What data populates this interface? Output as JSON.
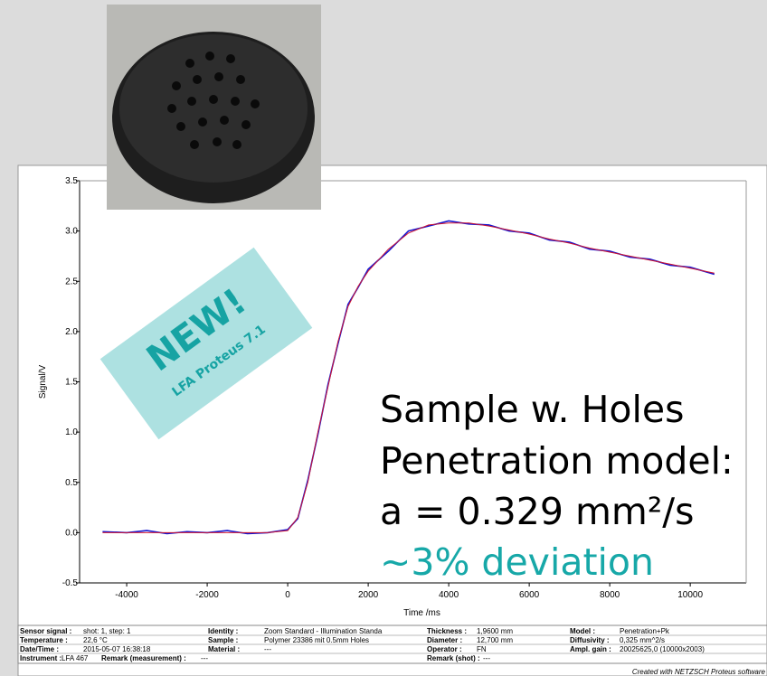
{
  "chart_data": {
    "type": "line",
    "xlabel": "Time /ms",
    "ylabel": "Signal/V",
    "x": [
      -4600,
      -4000,
      -3500,
      -3000,
      -2500,
      -2000,
      -1500,
      -1000,
      -500,
      0,
      250,
      500,
      750,
      1000,
      1250,
      1500,
      1750,
      2000,
      2500,
      3000,
      3500,
      4000,
      4500,
      5000,
      5500,
      6000,
      6500,
      7000,
      7500,
      8000,
      8500,
      9000,
      9500,
      10000,
      10600
    ],
    "series": [
      {
        "color": "#1515d0",
        "values": [
          0.01,
          0.0,
          0.02,
          -0.01,
          0.01,
          0.0,
          0.02,
          -0.01,
          0.0,
          0.03,
          0.14,
          0.52,
          0.98,
          1.47,
          1.88,
          2.27,
          2.44,
          2.62,
          2.8,
          3.0,
          3.05,
          3.1,
          3.07,
          3.06,
          3.0,
          2.98,
          2.91,
          2.89,
          2.82,
          2.8,
          2.74,
          2.72,
          2.66,
          2.64,
          2.57
        ]
      },
      {
        "color": "#d01530",
        "values": [
          0,
          0,
          0,
          0,
          0,
          0,
          0,
          0,
          0,
          0.02,
          0.15,
          0.5,
          1.0,
          1.45,
          1.9,
          2.25,
          2.45,
          2.6,
          2.82,
          2.98,
          3.06,
          3.08,
          3.08,
          3.05,
          3.01,
          2.97,
          2.92,
          2.88,
          2.83,
          2.79,
          2.75,
          2.71,
          2.67,
          2.63,
          2.58
        ]
      }
    ],
    "xlim": [
      -5170,
      11390
    ],
    "ylim": [
      -0.5,
      3.5
    ],
    "xticks": [
      -4000,
      -2000,
      0,
      2000,
      4000,
      6000,
      8000,
      10000
    ],
    "yticks": [
      -0.5,
      {
        "value": 0,
        "label": "0.0"
      },
      0.5,
      {
        "value": 1,
        "label": "1.0"
      },
      1.5,
      {
        "value": 2,
        "label": "2.0"
      },
      2.5,
      {
        "value": 3,
        "label": "3.0"
      },
      3.5
    ],
    "grid": false
  },
  "overlay": {
    "lines": [
      "Sample w. Holes",
      "Penetration model:",
      "a = 0.329 mm²/s",
      "~3% deviation"
    ]
  },
  "badge": {
    "title": "NEW!",
    "subtitle": "LFA Proteus 7.1"
  },
  "footer": {
    "rows": [
      [
        {
          "label": "Sensor signal :",
          "value": "shot: 1, step: 1"
        },
        {
          "label": "Identity :",
          "value": "Zoom Standard - Illumination Standa"
        },
        {
          "label": "Thickness :",
          "value": "1,9600 mm"
        },
        {
          "label": "Model :",
          "value": "Penetration+Pk"
        }
      ],
      [
        {
          "label": "Temperature :",
          "value": "22,6 °C"
        },
        {
          "label": "Sample :",
          "value": "Polymer 23386 mit 0.5mm Holes"
        },
        {
          "label": "Diameter :",
          "value": "12,700 mm"
        },
        {
          "label": "Diffusivity :",
          "value": "0,325 mm^2/s"
        }
      ],
      [
        {
          "label": "Date/Time :",
          "value": "2015-05-07 16:38:18"
        },
        {
          "label": "Material :",
          "value": "---"
        },
        {
          "label": "Operator :",
          "value": "FN"
        },
        {
          "label": "Ampl. gain :",
          "value": "20025625,0 (10000x2003)"
        }
      ],
      [
        {
          "label": "Instrument :",
          "value": "LFA 467"
        },
        {
          "label": "Remark (measurement) :",
          "value": "---"
        },
        {
          "label": "Remark (shot) :",
          "value": "---"
        }
      ]
    ],
    "credit": "Created with NETZSCH Proteus software"
  }
}
